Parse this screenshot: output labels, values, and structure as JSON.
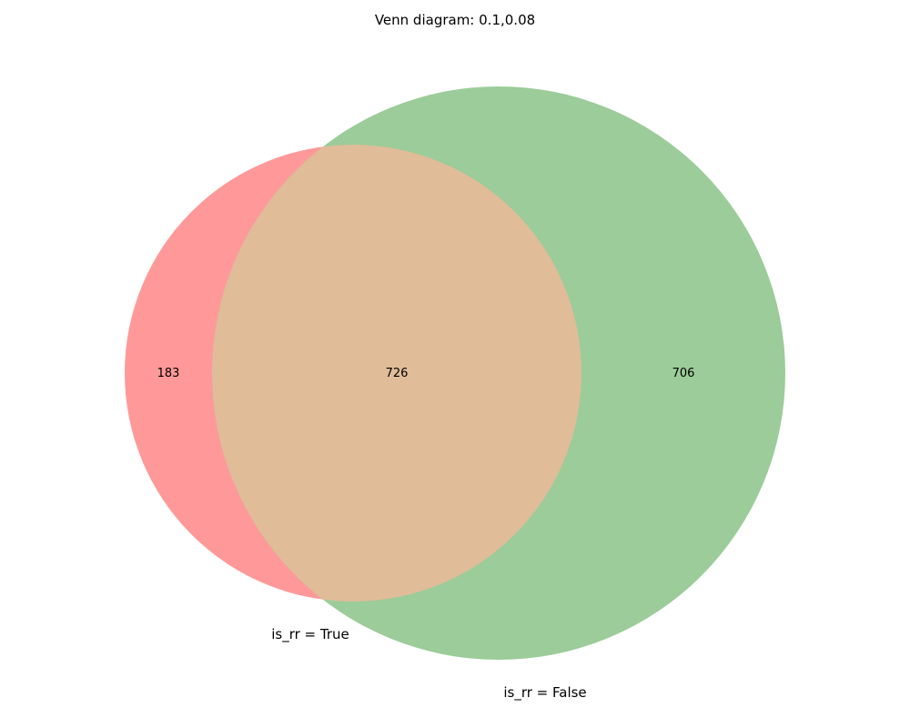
{
  "title": "Venn diagram: 0.1,0.08",
  "sets": [
    {
      "name": "is_rr = True",
      "color": "#ff9999"
    },
    {
      "name": "is_rr = False",
      "color": "#9bcc99"
    }
  ],
  "overlap_color": "#e0bc99",
  "regions": {
    "only_a": "183",
    "both": "726",
    "only_b": "706"
  },
  "chart_data": {
    "type": "venn",
    "title": "Venn diagram: 0.1,0.08",
    "sets": [
      "is_rr = True",
      "is_rr = False"
    ],
    "subsets": {
      "10": 183,
      "11": 726,
      "01": 706
    }
  }
}
